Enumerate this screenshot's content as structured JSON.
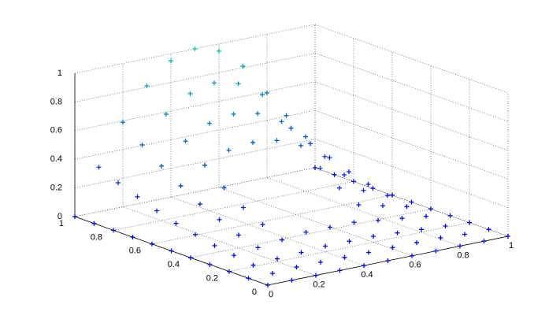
{
  "chart_data": {
    "type": "scatter3d",
    "x": [
      0,
      0.1,
      0.2,
      0.3,
      0.4,
      0.5,
      0.6,
      0.7,
      0.8,
      0.9,
      1
    ],
    "y": [
      0,
      0.1,
      0.2,
      0.3,
      0.4,
      0.5,
      0.6,
      0.7,
      0.8,
      0.9,
      1
    ],
    "z": [
      [
        0,
        0,
        0,
        0,
        0,
        0,
        0,
        0,
        0,
        0,
        0
      ],
      [
        0,
        0,
        0.01,
        0.01,
        0.01,
        0.01,
        0.01,
        0.01,
        0.01,
        0,
        0
      ],
      [
        0,
        0.01,
        0.02,
        0.03,
        0.04,
        0.04,
        0.04,
        0.03,
        0.02,
        0.01,
        0
      ],
      [
        0,
        0.03,
        0.05,
        0.07,
        0.09,
        0.09,
        0.09,
        0.07,
        0.05,
        0.03,
        0
      ],
      [
        0,
        0.05,
        0.09,
        0.13,
        null,
        null,
        null,
        0.13,
        0.09,
        0.05,
        0
      ],
      [
        0,
        0.08,
        0.15,
        0.2,
        null,
        null,
        null,
        0.2,
        0.15,
        0.08,
        0
      ],
      [
        0,
        0.11,
        0.21,
        0.29,
        null,
        null,
        null,
        0.29,
        0.21,
        0.11,
        0
      ],
      [
        0,
        0.15,
        0.29,
        0.4,
        0.47,
        0.49,
        0.47,
        0.4,
        0.29,
        0.15,
        0
      ],
      [
        0,
        0.2,
        0.38,
        0.52,
        0.61,
        0.64,
        0.61,
        0.52,
        0.38,
        0.2,
        0
      ],
      [
        0,
        0.25,
        0.48,
        0.66,
        0.77,
        0.81,
        0.77,
        0.66,
        0.48,
        0.25,
        0
      ],
      [
        0,
        0.31,
        0.59,
        0.81,
        0.95,
        1,
        0.95,
        0.81,
        0.59,
        0.31,
        0
      ]
    ],
    "colormap": [
      "#0000ff",
      "#00c8a0"
    ],
    "xlim": [
      0,
      1
    ],
    "ylim": [
      0,
      1
    ],
    "zlim": [
      0,
      1
    ],
    "xticks": [
      0,
      0.2,
      0.4,
      0.6,
      0.8,
      1
    ],
    "yticks": [
      0,
      0.2,
      0.4,
      0.6,
      0.8,
      1
    ],
    "zticks": [
      0,
      0.2,
      0.4,
      0.6,
      0.8,
      1
    ],
    "grid": true
  }
}
